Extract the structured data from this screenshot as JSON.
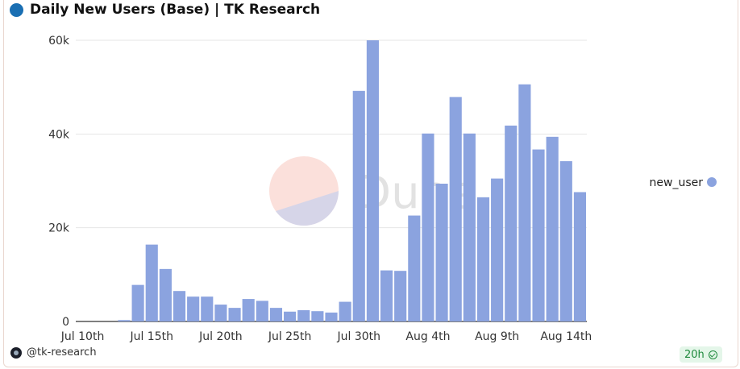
{
  "header": {
    "title": "Daily New Users (Base) | TK Research"
  },
  "footer": {
    "author": "@tk-research",
    "refresh_badge": "20h"
  },
  "watermark": {
    "text": "Dune"
  },
  "colors": {
    "bar": "#8ba3df",
    "title_dot": "#1a6fb3",
    "grid": "#e6e6e6",
    "badge_bg": "#e4f6e9",
    "badge_text": "#1e8a3c"
  },
  "chart_data": {
    "type": "bar",
    "title": "Daily New Users (Base) | TK Research",
    "xlabel": "",
    "ylabel": "",
    "ylim": [
      0,
      60000
    ],
    "yticks": [
      0,
      20000,
      40000,
      60000
    ],
    "ytick_labels": [
      "0",
      "20k",
      "40k",
      "60k"
    ],
    "xtick_labels": [
      "Jul 10th",
      "Jul 15th",
      "Jul 20th",
      "Jul 25th",
      "Jul 30th",
      "Aug 4th",
      "Aug 9th",
      "Aug 14th"
    ],
    "xtick_indices": [
      0,
      5,
      10,
      15,
      20,
      25,
      30,
      35
    ],
    "legend_position": "right",
    "grid": true,
    "categories": [
      "Jul 10",
      "Jul 11",
      "Jul 12",
      "Jul 13",
      "Jul 14",
      "Jul 15",
      "Jul 16",
      "Jul 17",
      "Jul 18",
      "Jul 19",
      "Jul 20",
      "Jul 21",
      "Jul 22",
      "Jul 23",
      "Jul 24",
      "Jul 25",
      "Jul 26",
      "Jul 27",
      "Jul 28",
      "Jul 29",
      "Jul 30",
      "Jul 31",
      "Aug 1",
      "Aug 2",
      "Aug 3",
      "Aug 4",
      "Aug 5",
      "Aug 6",
      "Aug 7",
      "Aug 8",
      "Aug 9",
      "Aug 10",
      "Aug 11",
      "Aug 12",
      "Aug 13",
      "Aug 14",
      "Aug 15"
    ],
    "series": [
      {
        "name": "new_user",
        "values": [
          0,
          0,
          0,
          300,
          7800,
          16400,
          11200,
          6500,
          5300,
          5300,
          3600,
          2900,
          4800,
          4400,
          2900,
          2100,
          2400,
          2200,
          1900,
          4200,
          49200,
          60000,
          10900,
          10800,
          22600,
          40100,
          29400,
          47900,
          40100,
          26500,
          30500,
          41800,
          50600,
          36700,
          39400,
          34200,
          27600
        ]
      }
    ]
  }
}
